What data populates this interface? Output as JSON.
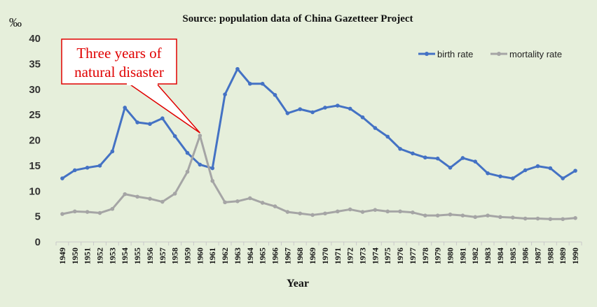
{
  "chart_data": {
    "type": "line",
    "title": "Source: population data of China Gazetteer Project",
    "xlabel": "Year",
    "ylabel": "‰",
    "ylim": [
      0,
      40
    ],
    "yticks": [
      "0",
      "5",
      "10",
      "15",
      "20",
      "25",
      "30",
      "35",
      "40"
    ],
    "grid": false,
    "legend_position": "top-right",
    "categories": [
      "1949",
      "1950",
      "1951",
      "1952",
      "1953",
      "1954",
      "1955",
      "1956",
      "1957",
      "1958",
      "1959",
      "1960",
      "1961",
      "1962",
      "1963",
      "1964",
      "1965",
      "1966",
      "1967",
      "1968",
      "1969",
      "1970",
      "1971",
      "1972",
      "1973",
      "1974",
      "1975",
      "1976",
      "1977",
      "1978",
      "1979",
      "1980",
      "1981",
      "1982",
      "1983",
      "1984",
      "1985",
      "1986",
      "1987",
      "1988",
      "1989",
      "1990"
    ],
    "series": [
      {
        "name": "birth rate",
        "color": "#4472c4",
        "values": [
          12.5,
          14.1,
          14.6,
          15.0,
          17.8,
          26.4,
          23.5,
          23.2,
          24.3,
          20.8,
          17.5,
          15.2,
          14.5,
          29.0,
          34.0,
          31.1,
          31.1,
          28.9,
          25.3,
          26.1,
          25.5,
          26.4,
          26.8,
          26.2,
          24.5,
          22.4,
          20.7,
          18.3,
          17.4,
          16.6,
          16.4,
          14.6,
          16.5,
          15.8,
          13.5,
          12.9,
          12.5,
          14.1,
          14.9,
          14.5,
          12.5,
          14.0
        ]
      },
      {
        "name": "mortality rate",
        "color": "#a5a5a5",
        "values": [
          5.5,
          6.0,
          5.9,
          5.7,
          6.5,
          9.4,
          8.9,
          8.5,
          7.9,
          9.5,
          13.8,
          20.9,
          12.0,
          7.8,
          8.0,
          8.6,
          7.7,
          7.0,
          5.9,
          5.6,
          5.3,
          5.6,
          6.0,
          6.4,
          5.9,
          6.3,
          6.0,
          6.0,
          5.8,
          5.2,
          5.2,
          5.4,
          5.2,
          4.9,
          5.2,
          4.9,
          4.8,
          4.6,
          4.6,
          4.5,
          4.5,
          4.7
        ]
      }
    ],
    "annotation": {
      "text_lines": [
        "Three years of",
        "natural disaster"
      ],
      "points_to": "1960",
      "color": "#e00000"
    }
  }
}
